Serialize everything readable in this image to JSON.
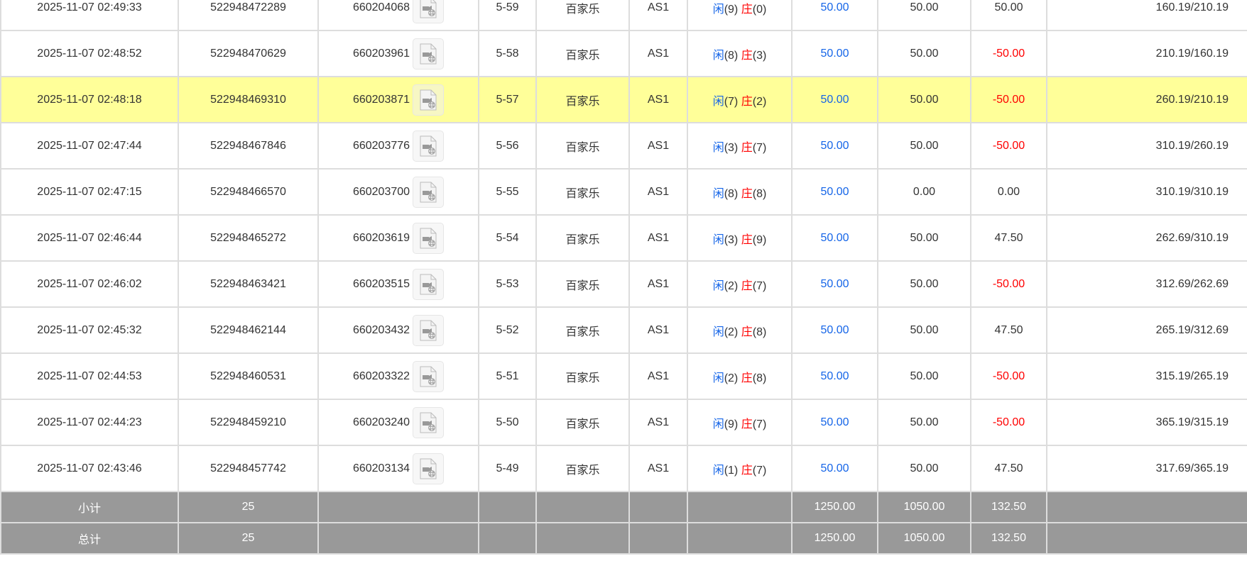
{
  "colors": {
    "highlight": "#ffff99",
    "player": "#1565e8",
    "banker": "#ff0000",
    "negative": "#ff0000",
    "footer": "#999999"
  },
  "rows": [
    {
      "time": "2025-11-07 02:49:33",
      "bet_id": "522948472289",
      "round_id": "660204068",
      "table_no": "5-59",
      "game": "百家乐",
      "room": "AS1",
      "player_label": "闲",
      "player": "(9)",
      "banker_label": "庄",
      "banker": "(0)",
      "bet": "50.00",
      "valid": "50.00",
      "win": "50.00",
      "win_neg": false,
      "balance": "160.19/210.19"
    },
    {
      "time": "2025-11-07 02:48:52",
      "bet_id": "522948470629",
      "round_id": "660203961",
      "table_no": "5-58",
      "game": "百家乐",
      "room": "AS1",
      "player_label": "闲",
      "player": "(8)",
      "banker_label": "庄",
      "banker": "(3)",
      "bet": "50.00",
      "valid": "50.00",
      "win": "-50.00",
      "win_neg": true,
      "balance": "210.19/160.19"
    },
    {
      "time": "2025-11-07 02:48:18",
      "bet_id": "522948469310",
      "round_id": "660203871",
      "table_no": "5-57",
      "game": "百家乐",
      "room": "AS1",
      "player_label": "闲",
      "player": "(7)",
      "banker_label": "庄",
      "banker": "(2)",
      "bet": "50.00",
      "valid": "50.00",
      "win": "-50.00",
      "win_neg": true,
      "balance": "260.19/210.19",
      "highlight": true
    },
    {
      "time": "2025-11-07 02:47:44",
      "bet_id": "522948467846",
      "round_id": "660203776",
      "table_no": "5-56",
      "game": "百家乐",
      "room": "AS1",
      "player_label": "闲",
      "player": "(3)",
      "banker_label": "庄",
      "banker": "(7)",
      "bet": "50.00",
      "valid": "50.00",
      "win": "-50.00",
      "win_neg": true,
      "balance": "310.19/260.19"
    },
    {
      "time": "2025-11-07 02:47:15",
      "bet_id": "522948466570",
      "round_id": "660203700",
      "table_no": "5-55",
      "game": "百家乐",
      "room": "AS1",
      "player_label": "闲",
      "player": "(8)",
      "banker_label": "庄",
      "banker": "(8)",
      "bet": "50.00",
      "valid": "0.00",
      "win": "0.00",
      "win_neg": false,
      "balance": "310.19/310.19"
    },
    {
      "time": "2025-11-07 02:46:44",
      "bet_id": "522948465272",
      "round_id": "660203619",
      "table_no": "5-54",
      "game": "百家乐",
      "room": "AS1",
      "player_label": "闲",
      "player": "(3)",
      "banker_label": "庄",
      "banker": "(9)",
      "bet": "50.00",
      "valid": "50.00",
      "win": "47.50",
      "win_neg": false,
      "balance": "262.69/310.19"
    },
    {
      "time": "2025-11-07 02:46:02",
      "bet_id": "522948463421",
      "round_id": "660203515",
      "table_no": "5-53",
      "game": "百家乐",
      "room": "AS1",
      "player_label": "闲",
      "player": "(2)",
      "banker_label": "庄",
      "banker": "(7)",
      "bet": "50.00",
      "valid": "50.00",
      "win": "-50.00",
      "win_neg": true,
      "balance": "312.69/262.69"
    },
    {
      "time": "2025-11-07 02:45:32",
      "bet_id": "522948462144",
      "round_id": "660203432",
      "table_no": "5-52",
      "game": "百家乐",
      "room": "AS1",
      "player_label": "闲",
      "player": "(2)",
      "banker_label": "庄",
      "banker": "(8)",
      "bet": "50.00",
      "valid": "50.00",
      "win": "47.50",
      "win_neg": false,
      "balance": "265.19/312.69"
    },
    {
      "time": "2025-11-07 02:44:53",
      "bet_id": "522948460531",
      "round_id": "660203322",
      "table_no": "5-51",
      "game": "百家乐",
      "room": "AS1",
      "player_label": "闲",
      "player": "(2)",
      "banker_label": "庄",
      "banker": "(8)",
      "bet": "50.00",
      "valid": "50.00",
      "win": "-50.00",
      "win_neg": true,
      "balance": "315.19/265.19"
    },
    {
      "time": "2025-11-07 02:44:23",
      "bet_id": "522948459210",
      "round_id": "660203240",
      "table_no": "5-50",
      "game": "百家乐",
      "room": "AS1",
      "player_label": "闲",
      "player": "(9)",
      "banker_label": "庄",
      "banker": "(7)",
      "bet": "50.00",
      "valid": "50.00",
      "win": "-50.00",
      "win_neg": true,
      "balance": "365.19/315.19"
    },
    {
      "time": "2025-11-07 02:43:46",
      "bet_id": "522948457742",
      "round_id": "660203134",
      "table_no": "5-49",
      "game": "百家乐",
      "room": "AS1",
      "player_label": "闲",
      "player": "(1)",
      "banker_label": "庄",
      "banker": "(7)",
      "bet": "50.00",
      "valid": "50.00",
      "win": "47.50",
      "win_neg": false,
      "balance": "317.69/365.19"
    }
  ],
  "footer": [
    {
      "label": "小计",
      "count": "25",
      "bet": "1250.00",
      "valid": "1050.00",
      "win": "132.50"
    },
    {
      "label": "总计",
      "count": "25",
      "bet": "1250.00",
      "valid": "1050.00",
      "win": "132.50"
    }
  ]
}
